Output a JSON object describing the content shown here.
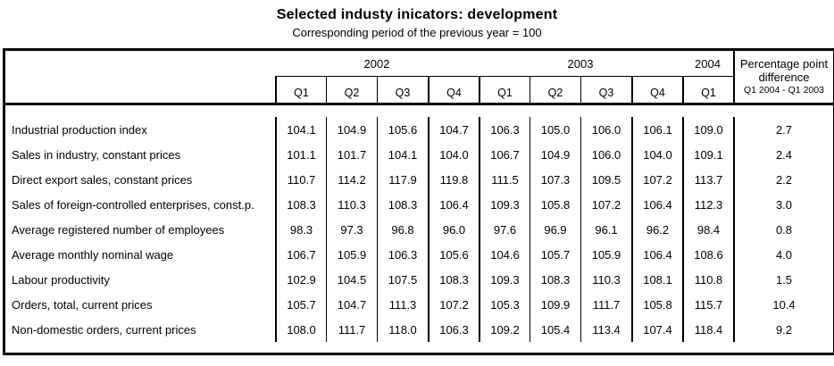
{
  "title": "Selected industy inicators: development",
  "subtitle": "Corresponding period of the previous year = 100",
  "table": {
    "year_groups": {
      "y2002": "2002",
      "y2003": "2003",
      "y2004": "2004"
    },
    "quarter_headers": {
      "q1a": "Q1",
      "q2a": "Q2",
      "q3a": "Q3",
      "q4a": "Q4",
      "q1b": "Q1",
      "q2b": "Q2",
      "q3b": "Q3",
      "q4b": "Q4",
      "q1c": "Q1"
    },
    "pct_header": {
      "line1": "Percentage point",
      "line2": "difference",
      "line3": "Q1 2004 - Q1 2003"
    },
    "rows": [
      {
        "label": "Industrial production index",
        "values": [
          "104.1",
          "104.9",
          "105.6",
          "104.7",
          "106.3",
          "105.0",
          "106.0",
          "106.1",
          "109.0",
          "2.7"
        ]
      },
      {
        "label": "Sales in industry, constant prices",
        "values": [
          "101.1",
          "101.7",
          "104.1",
          "104.0",
          "106.7",
          "104.9",
          "106.0",
          "104.0",
          "109.1",
          "2.4"
        ]
      },
      {
        "label": "Direct export sales, constant prices",
        "values": [
          "110.7",
          "114.2",
          "117.9",
          "119.8",
          "111.5",
          "107.3",
          "109.5",
          "107.2",
          "113.7",
          "2.2"
        ]
      },
      {
        "label": "Sales of foreign-controlled enterprises, const.p.",
        "values": [
          "108.3",
          "110.3",
          "108.3",
          "106.4",
          "109.3",
          "105.8",
          "107.2",
          "106.4",
          "112.3",
          "3.0"
        ]
      },
      {
        "label": "Average registered number of employees",
        "values": [
          "98.3",
          "97.3",
          "96.8",
          "96.0",
          "97.6",
          "96.9",
          "96.1",
          "96.2",
          "98.4",
          "0.8"
        ]
      },
      {
        "label": "Average monthly nominal wage",
        "values": [
          "106.7",
          "105.9",
          "106.3",
          "105.6",
          "104.6",
          "105.7",
          "105.9",
          "106.4",
          "108.6",
          "4.0"
        ]
      },
      {
        "label": "Labour productivity",
        "values": [
          "102.9",
          "104.5",
          "107.5",
          "108.3",
          "109.3",
          "108.3",
          "110.3",
          "108.1",
          "110.8",
          "1.5"
        ]
      },
      {
        "label": "Orders, total, current prices",
        "values": [
          "105.7",
          "104.7",
          "111.3",
          "107.2",
          "105.3",
          "109.9",
          "111.7",
          "105.8",
          "115.7",
          "10.4"
        ]
      },
      {
        "label": "Non-domestic orders, current prices",
        "values": [
          "108.0",
          "111.7",
          "118.0",
          "106.3",
          "109.2",
          "105.4",
          "113.4",
          "107.4",
          "118.4",
          "9.2"
        ]
      }
    ]
  },
  "chart_data": {
    "type": "table",
    "title": "Selected industy inicators: development",
    "subtitle": "Corresponding period of the previous year = 100",
    "columns": [
      "2002 Q1",
      "2002 Q2",
      "2002 Q3",
      "2002 Q4",
      "2003 Q1",
      "2003 Q2",
      "2003 Q3",
      "2003 Q4",
      "2004 Q1",
      "Percentage point difference Q1 2004 - Q1 2003"
    ],
    "rows": [
      {
        "indicator": "Industrial production index",
        "values": [
          104.1,
          104.9,
          105.6,
          104.7,
          106.3,
          105.0,
          106.0,
          106.1,
          109.0,
          2.7
        ]
      },
      {
        "indicator": "Sales in industry, constant prices",
        "values": [
          101.1,
          101.7,
          104.1,
          104.0,
          106.7,
          104.9,
          106.0,
          104.0,
          109.1,
          2.4
        ]
      },
      {
        "indicator": "Direct export sales, constant prices",
        "values": [
          110.7,
          114.2,
          117.9,
          119.8,
          111.5,
          107.3,
          109.5,
          107.2,
          113.7,
          2.2
        ]
      },
      {
        "indicator": "Sales of foreign-controlled enterprises, const.p.",
        "values": [
          108.3,
          110.3,
          108.3,
          106.4,
          109.3,
          105.8,
          107.2,
          106.4,
          112.3,
          3.0
        ]
      },
      {
        "indicator": "Average registered number of employees",
        "values": [
          98.3,
          97.3,
          96.8,
          96.0,
          97.6,
          96.9,
          96.1,
          96.2,
          98.4,
          0.8
        ]
      },
      {
        "indicator": "Average monthly nominal wage",
        "values": [
          106.7,
          105.9,
          106.3,
          105.6,
          104.6,
          105.7,
          105.9,
          106.4,
          108.6,
          4.0
        ]
      },
      {
        "indicator": "Labour productivity",
        "values": [
          102.9,
          104.5,
          107.5,
          108.3,
          109.3,
          108.3,
          110.3,
          108.1,
          110.8,
          1.5
        ]
      },
      {
        "indicator": "Orders, total, current prices",
        "values": [
          105.7,
          104.7,
          111.3,
          107.2,
          105.3,
          109.9,
          111.7,
          105.8,
          115.7,
          10.4
        ]
      },
      {
        "indicator": "Non-domestic orders, current prices",
        "values": [
          108.0,
          111.7,
          118.0,
          106.3,
          109.2,
          105.4,
          113.4,
          107.4,
          118.4,
          9.2
        ]
      }
    ]
  }
}
